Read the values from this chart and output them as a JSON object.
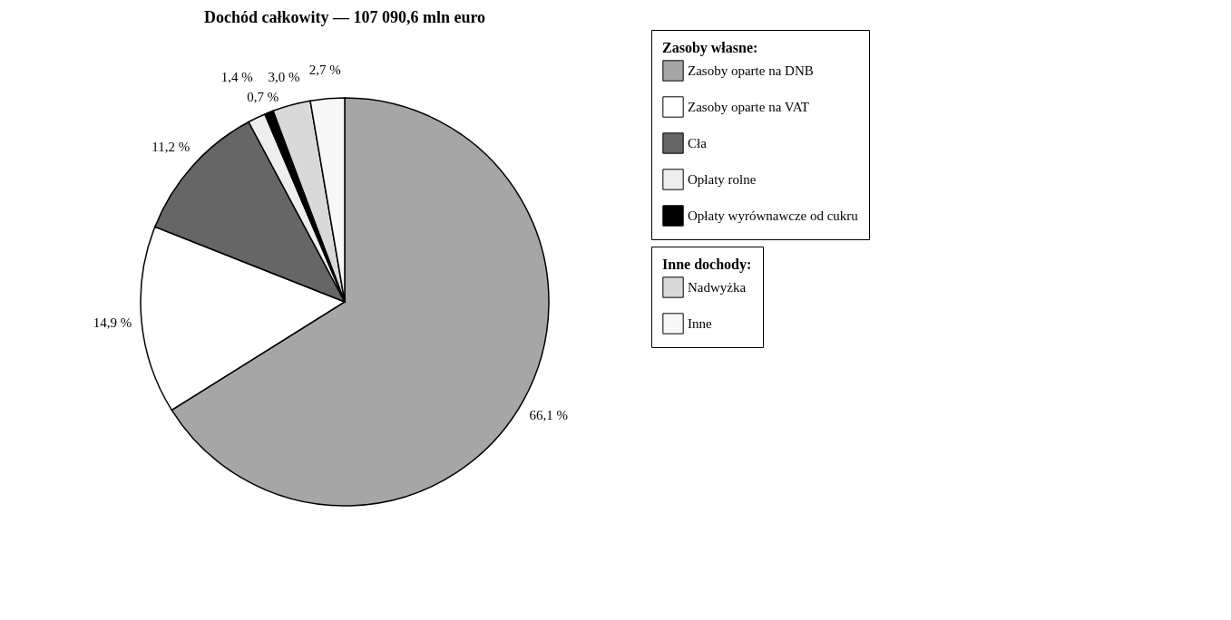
{
  "chart_data": {
    "type": "pie",
    "title": "Dochód całkowity — 107 090,6 mln euro",
    "categories": [
      "Zasoby oparte na DNB",
      "Zasoby oparte na VAT",
      "Cła",
      "Opłaty rolne",
      "Opłaty wyrównawcze od cukru",
      "Nadwyżka",
      "Inne"
    ],
    "values": [
      66.1,
      14.9,
      11.2,
      1.4,
      0.7,
      3.0,
      2.7
    ],
    "value_labels": [
      "66,1 %",
      "14,9 %",
      "11,2 %",
      "1,4 %",
      "0,7 %",
      "3,0 %",
      "2,7 %"
    ],
    "colors": [
      "#a6a6a6",
      "#ffffff",
      "#666666",
      "#eeeeee",
      "#000000",
      "#d9d9d9",
      "#f7f7f7"
    ],
    "legend_title": "Zasoby własne:",
    "legend": "right",
    "annotations": [
      "Inne dochody:"
    ]
  }
}
